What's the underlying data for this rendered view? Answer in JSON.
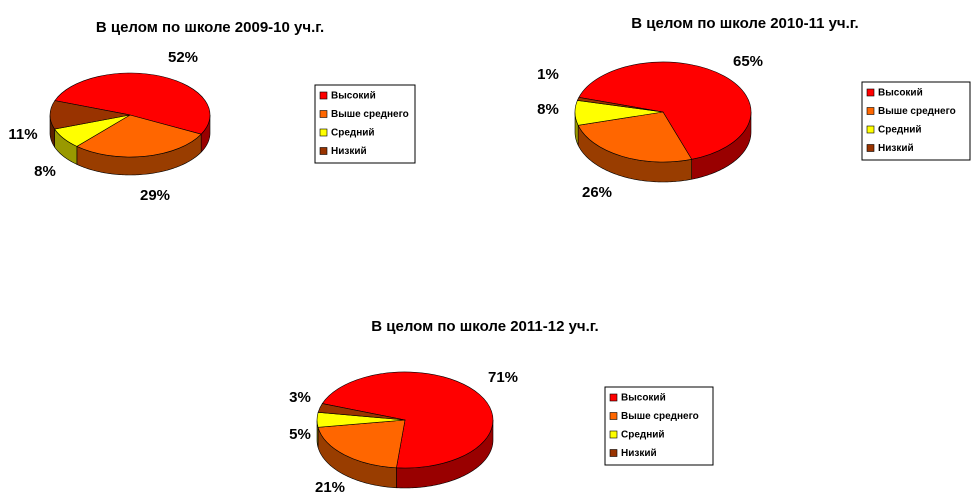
{
  "chart_data": [
    {
      "type": "pie",
      "title": "В целом по школе 2009-10 уч.г.",
      "categories": [
        "Высокий",
        "Выше среднего",
        "Средний",
        "Низкий"
      ],
      "values": [
        52,
        29,
        8,
        11
      ],
      "value_labels": [
        "52%",
        "29%",
        "8%",
        "11%"
      ],
      "colors": [
        "#ff0000",
        "#ff6600",
        "#ffff00",
        "#993300"
      ]
    },
    {
      "type": "pie",
      "title": "В целом по школе 2010-11 уч.г.",
      "categories": [
        "Высокий",
        "Выше среднего",
        "Средний",
        "Низкий"
      ],
      "values": [
        65,
        26,
        8,
        1
      ],
      "value_labels": [
        "65%",
        "26%",
        "8%",
        "1%"
      ],
      "colors": [
        "#ff0000",
        "#ff6600",
        "#ffff00",
        "#993300"
      ]
    },
    {
      "type": "pie",
      "title": "В целом по школе 2011-12 уч.г.",
      "categories": [
        "Высокий",
        "Выше среднего",
        "Средний",
        "Низкий"
      ],
      "values": [
        71,
        21,
        5,
        3
      ],
      "value_labels": [
        "71%",
        "21%",
        "5%",
        "3%"
      ],
      "colors": [
        "#ff0000",
        "#ff6600",
        "#ffff00",
        "#993300"
      ]
    }
  ]
}
